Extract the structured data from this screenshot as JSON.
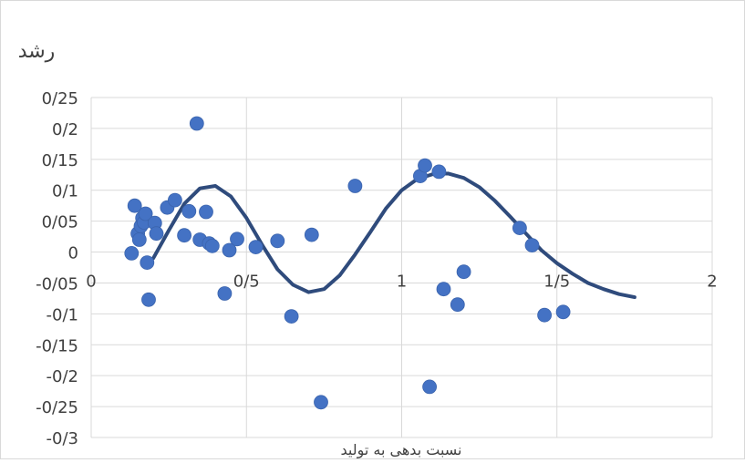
{
  "chart_data": {
    "type": "scatter",
    "title": "",
    "ylabel": "رشد",
    "xlabel": "نسبت بدهی به تولید",
    "xlim": [
      0,
      2
    ],
    "ylim": [
      -0.3,
      0.25
    ],
    "x_ticks": [
      0,
      0.5,
      1,
      1.5,
      2
    ],
    "x_tick_labels": [
      "0",
      "0/5",
      "1",
      "1/5",
      "2"
    ],
    "y_ticks": [
      0.25,
      0.2,
      0.15,
      0.1,
      0.05,
      0,
      -0.05,
      -0.1,
      -0.15,
      -0.2,
      -0.25,
      -0.3
    ],
    "y_tick_labels": [
      "0/25",
      "0/2",
      "0/15",
      "0/1",
      "0/05",
      "0",
      "-0/05",
      "-0/1",
      "-0/15",
      "-0/2",
      "-0/25",
      "-0/3"
    ],
    "grid": true,
    "legend": "none",
    "colors": {
      "points": "#4472C4",
      "trend": "#2F4B7C",
      "grid": "#D9D9D9"
    },
    "points": [
      {
        "x": 0.13,
        "y": -0.002
      },
      {
        "x": 0.14,
        "y": 0.075
      },
      {
        "x": 0.15,
        "y": 0.03
      },
      {
        "x": 0.155,
        "y": 0.02
      },
      {
        "x": 0.16,
        "y": 0.042
      },
      {
        "x": 0.165,
        "y": 0.055
      },
      {
        "x": 0.17,
        "y": 0.048
      },
      {
        "x": 0.175,
        "y": 0.062
      },
      {
        "x": 0.18,
        "y": -0.017
      },
      {
        "x": 0.185,
        "y": -0.077
      },
      {
        "x": 0.205,
        "y": 0.047
      },
      {
        "x": 0.21,
        "y": 0.03
      },
      {
        "x": 0.245,
        "y": 0.072
      },
      {
        "x": 0.27,
        "y": 0.084
      },
      {
        "x": 0.3,
        "y": 0.027
      },
      {
        "x": 0.315,
        "y": 0.066
      },
      {
        "x": 0.34,
        "y": 0.208
      },
      {
        "x": 0.35,
        "y": 0.02
      },
      {
        "x": 0.37,
        "y": 0.065
      },
      {
        "x": 0.38,
        "y": 0.014
      },
      {
        "x": 0.39,
        "y": 0.01
      },
      {
        "x": 0.43,
        "y": -0.067
      },
      {
        "x": 0.445,
        "y": 0.003
      },
      {
        "x": 0.47,
        "y": 0.021
      },
      {
        "x": 0.53,
        "y": 0.008
      },
      {
        "x": 0.6,
        "y": 0.018
      },
      {
        "x": 0.645,
        "y": -0.104
      },
      {
        "x": 0.71,
        "y": 0.028
      },
      {
        "x": 0.74,
        "y": -0.243
      },
      {
        "x": 0.85,
        "y": 0.107
      },
      {
        "x": 1.06,
        "y": 0.123
      },
      {
        "x": 1.075,
        "y": 0.14
      },
      {
        "x": 1.09,
        "y": -0.218
      },
      {
        "x": 1.12,
        "y": 0.13
      },
      {
        "x": 1.135,
        "y": -0.06
      },
      {
        "x": 1.18,
        "y": -0.085
      },
      {
        "x": 1.2,
        "y": -0.032
      },
      {
        "x": 1.38,
        "y": 0.039
      },
      {
        "x": 1.42,
        "y": 0.011
      },
      {
        "x": 1.46,
        "y": -0.102
      },
      {
        "x": 1.52,
        "y": -0.097
      }
    ],
    "trendline": {
      "x": [
        0.2,
        0.25,
        0.3,
        0.35,
        0.4,
        0.45,
        0.5,
        0.55,
        0.6,
        0.65,
        0.7,
        0.75,
        0.8,
        0.85,
        0.9,
        0.95,
        1.0,
        1.05,
        1.1,
        1.15,
        1.2,
        1.25,
        1.3,
        1.35,
        1.4,
        1.45,
        1.5,
        1.55,
        1.6,
        1.65,
        1.7,
        1.75
      ],
      "y": [
        -0.01,
        0.035,
        0.078,
        0.103,
        0.107,
        0.09,
        0.055,
        0.012,
        -0.028,
        -0.053,
        -0.065,
        -0.06,
        -0.038,
        -0.004,
        0.033,
        0.071,
        0.1,
        0.118,
        0.126,
        0.127,
        0.12,
        0.105,
        0.083,
        0.057,
        0.03,
        0.003,
        -0.018,
        -0.035,
        -0.05,
        -0.06,
        -0.068,
        -0.073
      ]
    }
  }
}
